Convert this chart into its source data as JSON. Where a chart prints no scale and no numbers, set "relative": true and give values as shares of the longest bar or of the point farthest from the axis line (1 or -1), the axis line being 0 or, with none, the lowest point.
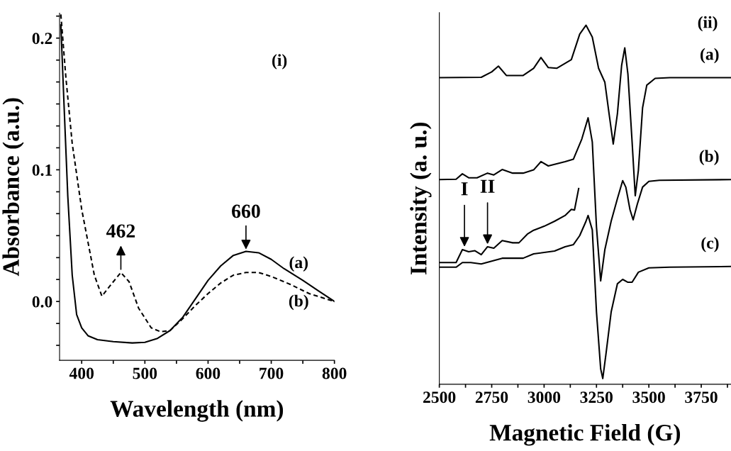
{
  "chart_data": [
    {
      "type": "line",
      "title": "(i)",
      "xlabel": "Wavelength (nm)",
      "ylabel": "Absorbance (a.u.)",
      "xlim": [
        365,
        800
      ],
      "ylim": [
        -0.0447,
        0.219
      ],
      "xticks": [
        400,
        {
          "value": 450,
          "label": null
        },
        500,
        {
          "value": 550,
          "label": null
        },
        600,
        {
          "value": 650,
          "label": null
        },
        700,
        {
          "value": 750,
          "label": null
        },
        800
      ],
      "yticks": [
        {
          "value": -0.0333,
          "label": null
        },
        {
          "value": -0.0167,
          "label": null
        },
        {
          "value": 0.0,
          "label": "0.0"
        },
        {
          "value": 0.0167,
          "label": null
        },
        {
          "value": 0.0333,
          "label": null
        },
        {
          "value": 0.05,
          "label": null
        },
        {
          "value": 0.0667,
          "label": null
        },
        {
          "value": 0.0833,
          "label": null
        },
        0.1,
        {
          "value": 0.1167,
          "label": null
        },
        {
          "value": 0.1333,
          "label": null
        },
        {
          "value": 0.15,
          "label": null
        },
        {
          "value": 0.1667,
          "label": null
        },
        {
          "value": 0.1833,
          "label": null
        },
        0.2,
        {
          "value": 0.2167,
          "label": null
        }
      ],
      "series": [
        {
          "name": "(a)",
          "color": "#000000",
          "line_style": "solid",
          "x": [
            367,
            372,
            378,
            385,
            392,
            400,
            410,
            425,
            450,
            480,
            500,
            520,
            540,
            560,
            580,
            600,
            620,
            640,
            660,
            680,
            700,
            720,
            750,
            775,
            800
          ],
          "values": [
            0.21,
            0.15,
            0.08,
            0.02,
            -0.01,
            -0.02,
            -0.026,
            -0.029,
            -0.0305,
            -0.0315,
            -0.031,
            -0.028,
            -0.022,
            -0.012,
            0.002,
            0.016,
            0.027,
            0.035,
            0.038,
            0.037,
            0.032,
            0.025,
            0.016,
            0.008,
            0.0
          ]
        },
        {
          "name": "(b)",
          "color": "#000000",
          "line_style": "dashed",
          "x": [
            367,
            375,
            385,
            400,
            410,
            420,
            432,
            445,
            462,
            475,
            490,
            510,
            525,
            540,
            560,
            580,
            600,
            620,
            640,
            660,
            680,
            700,
            730,
            760,
            800
          ],
          "values": [
            0.218,
            0.17,
            0.12,
            0.07,
            0.045,
            0.02,
            0.004,
            0.012,
            0.022,
            0.015,
            -0.005,
            -0.02,
            -0.023,
            -0.022,
            -0.013,
            -0.003,
            0.006,
            0.014,
            0.02,
            0.022,
            0.022,
            0.019,
            0.013,
            0.006,
            0.0
          ]
        }
      ],
      "annotations": [
        {
          "text": "462",
          "x": 462,
          "y": 0.023
        },
        {
          "text": "660",
          "x": 660,
          "y": 0.038
        }
      ]
    },
    {
      "type": "line",
      "title": "(ii)",
      "xlabel": "Magnetic Field (G)",
      "ylabel": "Intensity (a. u.)",
      "relative": true,
      "xlim": [
        2500,
        3892
      ],
      "xticks": [
        2500,
        {
          "value": 2625,
          "label": null
        },
        2750,
        {
          "value": 2875,
          "label": null
        },
        3000,
        {
          "value": 3125,
          "label": null
        },
        3250,
        {
          "value": 3375,
          "label": null
        },
        3500,
        {
          "value": 3625,
          "label": null
        },
        3750,
        {
          "value": 3875,
          "label": null
        }
      ],
      "series": [
        {
          "name": "(a)",
          "color": "#000000",
          "x": [
            2500,
            2700,
            2750,
            2782,
            2820,
            2900,
            2950,
            2985,
            3020,
            3060,
            3130,
            3170,
            3200,
            3230,
            3260,
            3290,
            3310,
            3330,
            3350,
            3370,
            3385,
            3400,
            3420,
            3435,
            3450,
            3470,
            3490,
            3530,
            3600,
            3892
          ],
          "values": [
            0.854,
            0.855,
            0.87,
            0.886,
            0.86,
            0.86,
            0.88,
            0.91,
            0.882,
            0.88,
            0.904,
            0.975,
            1.0,
            0.967,
            0.88,
            0.841,
            0.754,
            0.669,
            0.754,
            0.888,
            0.937,
            0.864,
            0.675,
            0.525,
            0.596,
            0.77,
            0.833,
            0.852,
            0.854,
            0.854
          ]
        },
        {
          "name": "(b)",
          "color": "#000000",
          "x": [
            2500,
            2580,
            2610,
            2640,
            2680,
            2730,
            2760,
            2800,
            2850,
            2900,
            2950,
            2985,
            3020,
            3100,
            3140,
            3180,
            3210,
            3230,
            3250,
            3270,
            3290,
            3320,
            3350,
            3375,
            3390,
            3410,
            3425,
            3445,
            3470,
            3500,
            3550,
            3892
          ],
          "values": [
            0.57,
            0.571,
            0.586,
            0.575,
            0.575,
            0.588,
            0.583,
            0.598,
            0.588,
            0.588,
            0.597,
            0.62,
            0.608,
            0.62,
            0.627,
            0.683,
            0.742,
            0.675,
            0.438,
            0.288,
            0.375,
            0.454,
            0.517,
            0.567,
            0.549,
            0.486,
            0.458,
            0.502,
            0.549,
            0.565,
            0.568,
            0.57
          ]
        },
        {
          "color": "#000000",
          "x": [
            2500,
            2580,
            2610,
            2640,
            2670,
            2700,
            2730,
            2760,
            2800,
            2850,
            2880,
            2920,
            2950,
            3000,
            3050,
            3100,
            3130,
            3145,
            3165
          ],
          "values": [
            0.339,
            0.339,
            0.375,
            0.369,
            0.372,
            0.361,
            0.383,
            0.379,
            0.4,
            0.394,
            0.394,
            0.418,
            0.429,
            0.44,
            0.454,
            0.47,
            0.487,
            0.485,
            0.545
          ]
        },
        {
          "name": "(c)",
          "color": "#000000",
          "x": [
            2500,
            2580,
            2610,
            2650,
            2700,
            2750,
            2800,
            2900,
            2950,
            3050,
            3100,
            3140,
            3170,
            3200,
            3210,
            3230,
            3250,
            3270,
            3280,
            3295,
            3320,
            3350,
            3375,
            3400,
            3420,
            3450,
            3500,
            3600,
            3892
          ],
          "values": [
            0.326,
            0.326,
            0.339,
            0.339,
            0.335,
            0.343,
            0.351,
            0.351,
            0.363,
            0.371,
            0.383,
            0.389,
            0.414,
            0.454,
            0.47,
            0.43,
            0.201,
            0.043,
            0.016,
            0.083,
            0.201,
            0.28,
            0.292,
            0.284,
            0.284,
            0.312,
            0.324,
            0.326,
            0.328
          ]
        }
      ],
      "annotations": [
        {
          "text": "I",
          "x": 2620,
          "y": 0.383
        },
        {
          "text": "II",
          "x": 2730,
          "y": 0.39
        }
      ]
    }
  ]
}
